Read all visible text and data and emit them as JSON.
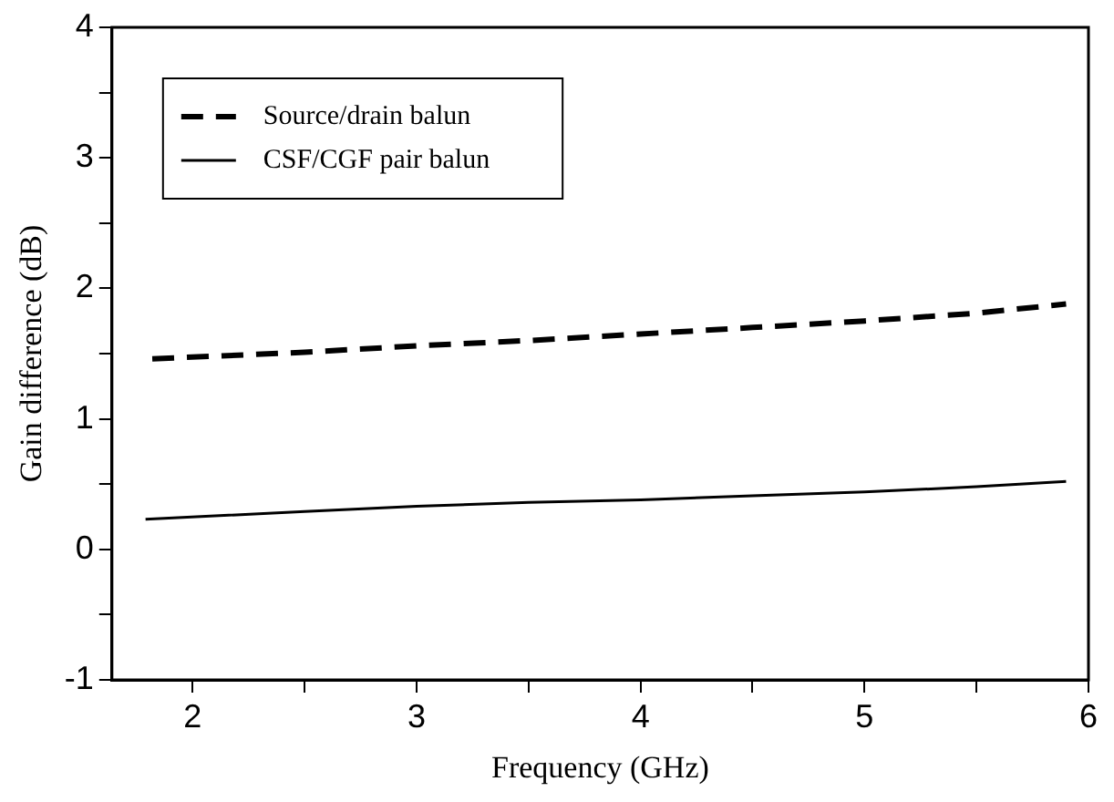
{
  "chart_data": {
    "type": "line",
    "xlabel": "Frequency (GHz)",
    "ylabel": "Gain difference (dB)",
    "xlim": [
      1.64,
      6
    ],
    "ylim": [
      -1,
      4
    ],
    "xticks": [
      2,
      {
        "value": 2.5,
        "label": null
      },
      3,
      {
        "value": 3.5,
        "label": null
      },
      4,
      {
        "value": 4.5,
        "label": null
      },
      5,
      {
        "value": 5.5,
        "label": null
      },
      6
    ],
    "yticks": [
      -1,
      {
        "value": -0.5,
        "label": null
      },
      0,
      {
        "value": 0.5,
        "label": null
      },
      1,
      {
        "value": 1.5,
        "label": null
      },
      2,
      {
        "value": 2.5,
        "label": null
      },
      3,
      {
        "value": 3.5,
        "label": null
      },
      4
    ],
    "grid": false,
    "legend": "top left",
    "marker": "none",
    "series": [
      {
        "name": "Source/drain balun",
        "color": "#000000",
        "line_style": "dashed",
        "x": [
          1.82,
          2.5,
          3,
          3.5,
          4,
          4.5,
          5,
          5.5,
          5.9
        ],
        "values": [
          1.46,
          1.51,
          1.56,
          1.6,
          1.65,
          1.7,
          1.75,
          1.81,
          1.88
        ]
      },
      {
        "name": "CSF/CGF pair balun",
        "color": "#000000",
        "line_style": "solid",
        "x": [
          1.79,
          2.5,
          3,
          3.5,
          4,
          4.5,
          5,
          5.5,
          5.9
        ],
        "values": [
          0.23,
          0.29,
          0.33,
          0.36,
          0.38,
          0.41,
          0.44,
          0.48,
          0.52
        ]
      }
    ]
  }
}
